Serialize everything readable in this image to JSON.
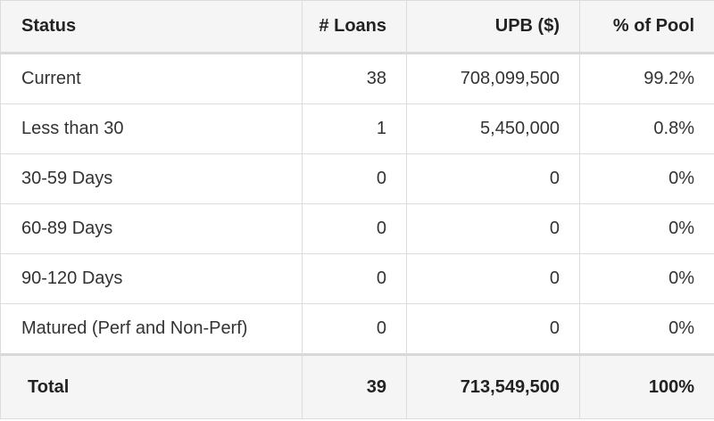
{
  "table": {
    "headers": [
      "Status",
      "# Loans",
      "UPB ($)",
      "% of Pool"
    ],
    "rows": [
      {
        "status": "Current",
        "loans": "38",
        "upb": "708,099,500",
        "pct": "99.2%"
      },
      {
        "status": "Less than 30",
        "loans": "1",
        "upb": "5,450,000",
        "pct": "0.8%"
      },
      {
        "status": "30-59 Days",
        "loans": "0",
        "upb": "0",
        "pct": "0%"
      },
      {
        "status": "60-89 Days",
        "loans": "0",
        "upb": "0",
        "pct": "0%"
      },
      {
        "status": "90-120 Days",
        "loans": "0",
        "upb": "0",
        "pct": "0%"
      },
      {
        "status": "Matured (Perf and Non-Perf)",
        "loans": "0",
        "upb": "0",
        "pct": "0%"
      }
    ],
    "total": {
      "status": "Total",
      "loans": "39",
      "upb": "713,549,500",
      "pct": "100%"
    }
  }
}
